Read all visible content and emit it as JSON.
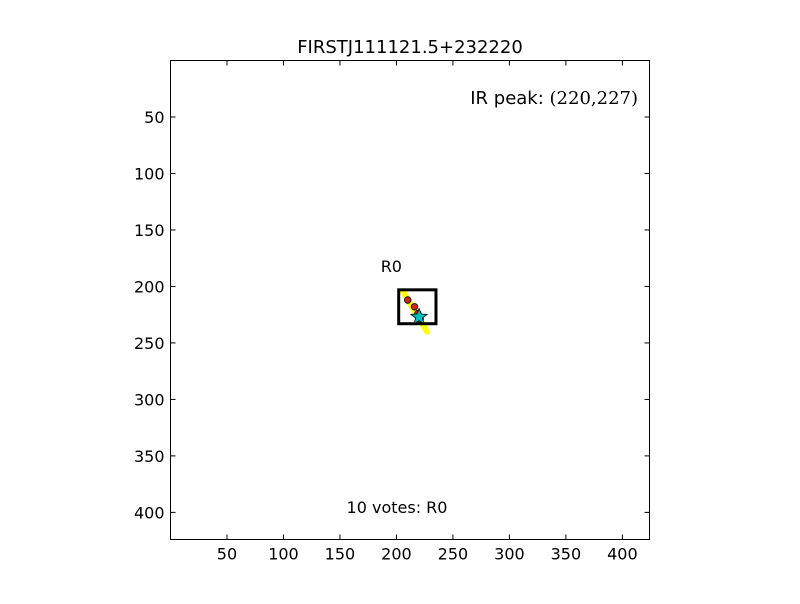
{
  "chart_data": {
    "type": "scatter",
    "title": "FIRSTJ111121.5+232220",
    "xlabel": "",
    "ylabel": "",
    "xlim": [
      0,
      424
    ],
    "ylim": [
      424,
      0
    ],
    "grid": false,
    "x_ticks": [
      50,
      100,
      150,
      200,
      250,
      300,
      350,
      400
    ],
    "y_ticks": [
      50,
      100,
      150,
      200,
      250,
      300,
      350,
      400
    ],
    "ir_peak": {
      "label": "IR peak: ",
      "value": "(220,227)",
      "x": 220,
      "y": 227
    },
    "radio_box": {
      "label": "R0",
      "x0": 202,
      "y0": 203,
      "x1": 235,
      "y1": 233
    },
    "radio_jet": {
      "x0": 206,
      "y0": 205,
      "x1": 227,
      "y1": 240
    },
    "points": [
      {
        "x": 210,
        "y": 212
      },
      {
        "x": 216,
        "y": 218
      },
      {
        "x": 219,
        "y": 224
      },
      {
        "x": 221,
        "y": 229
      }
    ],
    "votes_text": "10 votes: R0",
    "colors": {
      "jet": "#ffff00",
      "points": "#cc2222",
      "peak_star": "#00bfbf",
      "box": "#000000"
    }
  }
}
